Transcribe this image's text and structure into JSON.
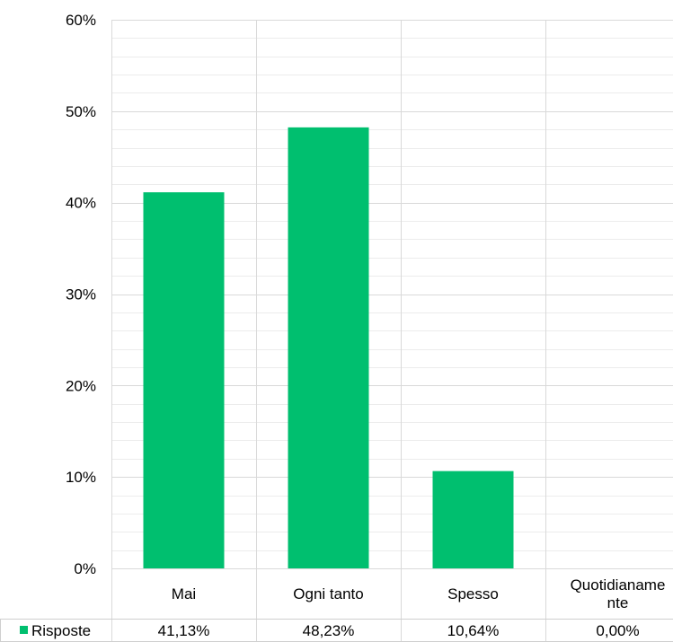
{
  "chart_data": {
    "type": "bar",
    "categories": [
      "Mai",
      "Ogni tanto",
      "Spesso",
      "Quotidianamente"
    ],
    "category_display_lines": [
      [
        "Mai"
      ],
      [
        "Ogni tanto"
      ],
      [
        "Spesso"
      ],
      [
        "Quotidianame",
        "nte"
      ]
    ],
    "series": [
      {
        "name": "Risposte",
        "values": [
          41.13,
          48.23,
          10.64,
          0.0
        ],
        "value_labels": [
          "41,13%",
          "48,23%",
          "10,64%",
          "0,00%"
        ],
        "color": "#00BF6F"
      }
    ],
    "ylim": [
      0,
      60
    ],
    "y_ticks": [
      0,
      10,
      20,
      30,
      40,
      50,
      60
    ],
    "y_tick_labels": [
      "0%",
      "10%",
      "20%",
      "30%",
      "40%",
      "50%",
      "60%"
    ],
    "minor_gridlines": true,
    "grid": true,
    "data_table": true,
    "legend_placement": "data-table-left",
    "title": "",
    "xlabel": "",
    "ylabel": ""
  },
  "colors": {
    "bar": "#00BF6F",
    "grid_major": "#d9d9d9",
    "grid_minor": "#ececec",
    "table_border": "#cfcfcf"
  }
}
